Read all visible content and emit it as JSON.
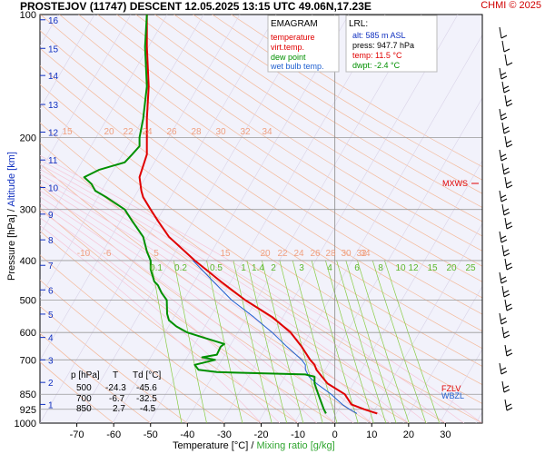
{
  "header": {
    "title": "PROSTEJOV (11747)   DESCENT   12.05.2025 13:15 UTC  49.06N,17.23E",
    "credit": "CHMI © 2025"
  },
  "axes_labels": {
    "pressure": "Pressure [hPa]",
    "sep": " / ",
    "altitude": "Altitude [km]",
    "temperature": "Temperature [°C]",
    "xsep": "  /  ",
    "mixing": "Mixing ratio [g/kg]"
  },
  "legend": {
    "title": "EMAGRAM",
    "items": [
      {
        "label": "temperature",
        "color": "#e00000"
      },
      {
        "label": "virt.temp.",
        "color": "#e00000"
      },
      {
        "label": "dew point",
        "color": "#009000"
      },
      {
        "label": "wet bulb temp.",
        "color": "#2060d0"
      }
    ]
  },
  "lrl": {
    "title": "LRL:",
    "lines": [
      {
        "text": "alt: 585 m ASL",
        "color": "#1030c0"
      },
      {
        "text": "press: 947.7 hPa",
        "color": "#000000"
      },
      {
        "text": "temp: 11.5 °C",
        "color": "#e00000"
      },
      {
        "text": "dwpt: -2.4 °C",
        "color": "#009000"
      }
    ]
  },
  "level_table": {
    "header": [
      "p [hPa]",
      "T",
      "Td [°C]"
    ],
    "rows": [
      [
        "500",
        "-24.3",
        "-45.6"
      ],
      [
        "700",
        "-6.7",
        "-32.5"
      ],
      [
        "850",
        "2.7",
        "-4.5"
      ]
    ]
  },
  "markers": {
    "mxws": "MXWS",
    "fzlv": "FZLV",
    "wbzl": "WBZL"
  },
  "chart_data": {
    "type": "line",
    "x_axis": {
      "min": -80,
      "max": 40,
      "ticks": [
        -70,
        -60,
        -50,
        -40,
        -30,
        -20,
        -10,
        0,
        10,
        20,
        30
      ]
    },
    "y_axis": {
      "scale": "log",
      "min": 1000,
      "max": 100,
      "ticks": [
        "100",
        "200",
        "300",
        "400",
        "500",
        "600",
        "700",
        "850",
        "925",
        "1000"
      ]
    },
    "altitude_ticks": [
      {
        "km": "1",
        "p": 900
      },
      {
        "km": "2",
        "p": 795
      },
      {
        "km": "3",
        "p": 700
      },
      {
        "km": "4",
        "p": 617
      },
      {
        "km": "5",
        "p": 541
      },
      {
        "km": "6",
        "p": 472
      },
      {
        "km": "7",
        "p": 411
      },
      {
        "km": "8",
        "p": 356
      },
      {
        "km": "9",
        "p": 308
      },
      {
        "km": "10",
        "p": 265
      },
      {
        "km": "11",
        "p": 227
      },
      {
        "km": "12",
        "p": 194
      },
      {
        "km": "13",
        "p": 166
      },
      {
        "km": "14",
        "p": 141
      },
      {
        "km": "15",
        "p": 121
      },
      {
        "km": "16",
        "p": 103
      }
    ],
    "mixing_ratio_labels_lower": [
      "0.1",
      "0.2",
      "0.5",
      "1",
      "1.4",
      "2",
      "3",
      "4",
      "6",
      "8",
      "10",
      "12",
      "15",
      "20",
      "25"
    ],
    "mixing_ratio_labels_upper_400": [
      "-10",
      "-6",
      "5",
      "15",
      "20",
      "22",
      "24",
      "26",
      "28",
      "30",
      "32",
      "34"
    ],
    "mixing_ratio_labels_upper_200": [
      "15",
      "20",
      "22",
      "24",
      "26",
      "28",
      "30",
      "32",
      "34"
    ],
    "series": [
      {
        "name": "temperature",
        "color": "#e00000",
        "points": [
          [
            947,
            11.5
          ],
          [
            925,
            8
          ],
          [
            900,
            4.5
          ],
          [
            850,
            2.7
          ],
          [
            800,
            -2
          ],
          [
            770,
            -3.5
          ],
          [
            740,
            -5
          ],
          [
            720,
            -5.5
          ],
          [
            700,
            -6.7
          ],
          [
            650,
            -9
          ],
          [
            600,
            -12
          ],
          [
            550,
            -17
          ],
          [
            500,
            -24.3
          ],
          [
            450,
            -31
          ],
          [
            400,
            -38
          ],
          [
            350,
            -45
          ],
          [
            320,
            -48
          ],
          [
            300,
            -50
          ],
          [
            280,
            -52
          ],
          [
            270,
            -52.5
          ],
          [
            250,
            -53
          ],
          [
            220,
            -51
          ],
          [
            200,
            -51
          ],
          [
            180,
            -51
          ],
          [
            150,
            -50.5
          ],
          [
            120,
            -51
          ],
          [
            100,
            -51
          ]
        ]
      },
      {
        "name": "wet bulb temp.",
        "color": "#2060d0",
        "points": [
          [
            947,
            6
          ],
          [
            925,
            4
          ],
          [
            900,
            2
          ],
          [
            850,
            -1
          ],
          [
            800,
            -5
          ],
          [
            770,
            -7
          ],
          [
            740,
            -8
          ],
          [
            720,
            -8
          ],
          [
            700,
            -9
          ],
          [
            650,
            -13
          ],
          [
            600,
            -17
          ],
          [
            550,
            -22
          ],
          [
            500,
            -28
          ],
          [
            450,
            -33
          ],
          [
            400,
            -38.5
          ]
        ]
      },
      {
        "name": "dew point",
        "color": "#009000",
        "points": [
          [
            947,
            -2.4
          ],
          [
            925,
            -3
          ],
          [
            900,
            -3.5
          ],
          [
            850,
            -4.5
          ],
          [
            800,
            -5.5
          ],
          [
            770,
            -5.5
          ],
          [
            760,
            -8
          ],
          [
            750,
            -32
          ],
          [
            740,
            -37
          ],
          [
            720,
            -38
          ],
          [
            700,
            -32.5
          ],
          [
            690,
            -36
          ],
          [
            680,
            -32
          ],
          [
            650,
            -31
          ],
          [
            640,
            -30
          ],
          [
            620,
            -35
          ],
          [
            600,
            -40
          ],
          [
            580,
            -43
          ],
          [
            560,
            -45
          ],
          [
            540,
            -45.5
          ],
          [
            500,
            -45.6
          ],
          [
            480,
            -47
          ],
          [
            460,
            -48
          ],
          [
            450,
            -49
          ],
          [
            420,
            -50
          ],
          [
            400,
            -50
          ],
          [
            380,
            -51
          ],
          [
            350,
            -52
          ],
          [
            320,
            -55
          ],
          [
            300,
            -57
          ],
          [
            280,
            -62
          ],
          [
            270,
            -65
          ],
          [
            260,
            -66
          ],
          [
            250,
            -68
          ],
          [
            240,
            -64
          ],
          [
            230,
            -57
          ],
          [
            220,
            -55
          ],
          [
            210,
            -53
          ],
          [
            200,
            -53
          ],
          [
            180,
            -52
          ],
          [
            150,
            -51
          ],
          [
            120,
            -51.5
          ],
          [
            100,
            -51
          ]
        ]
      }
    ]
  }
}
